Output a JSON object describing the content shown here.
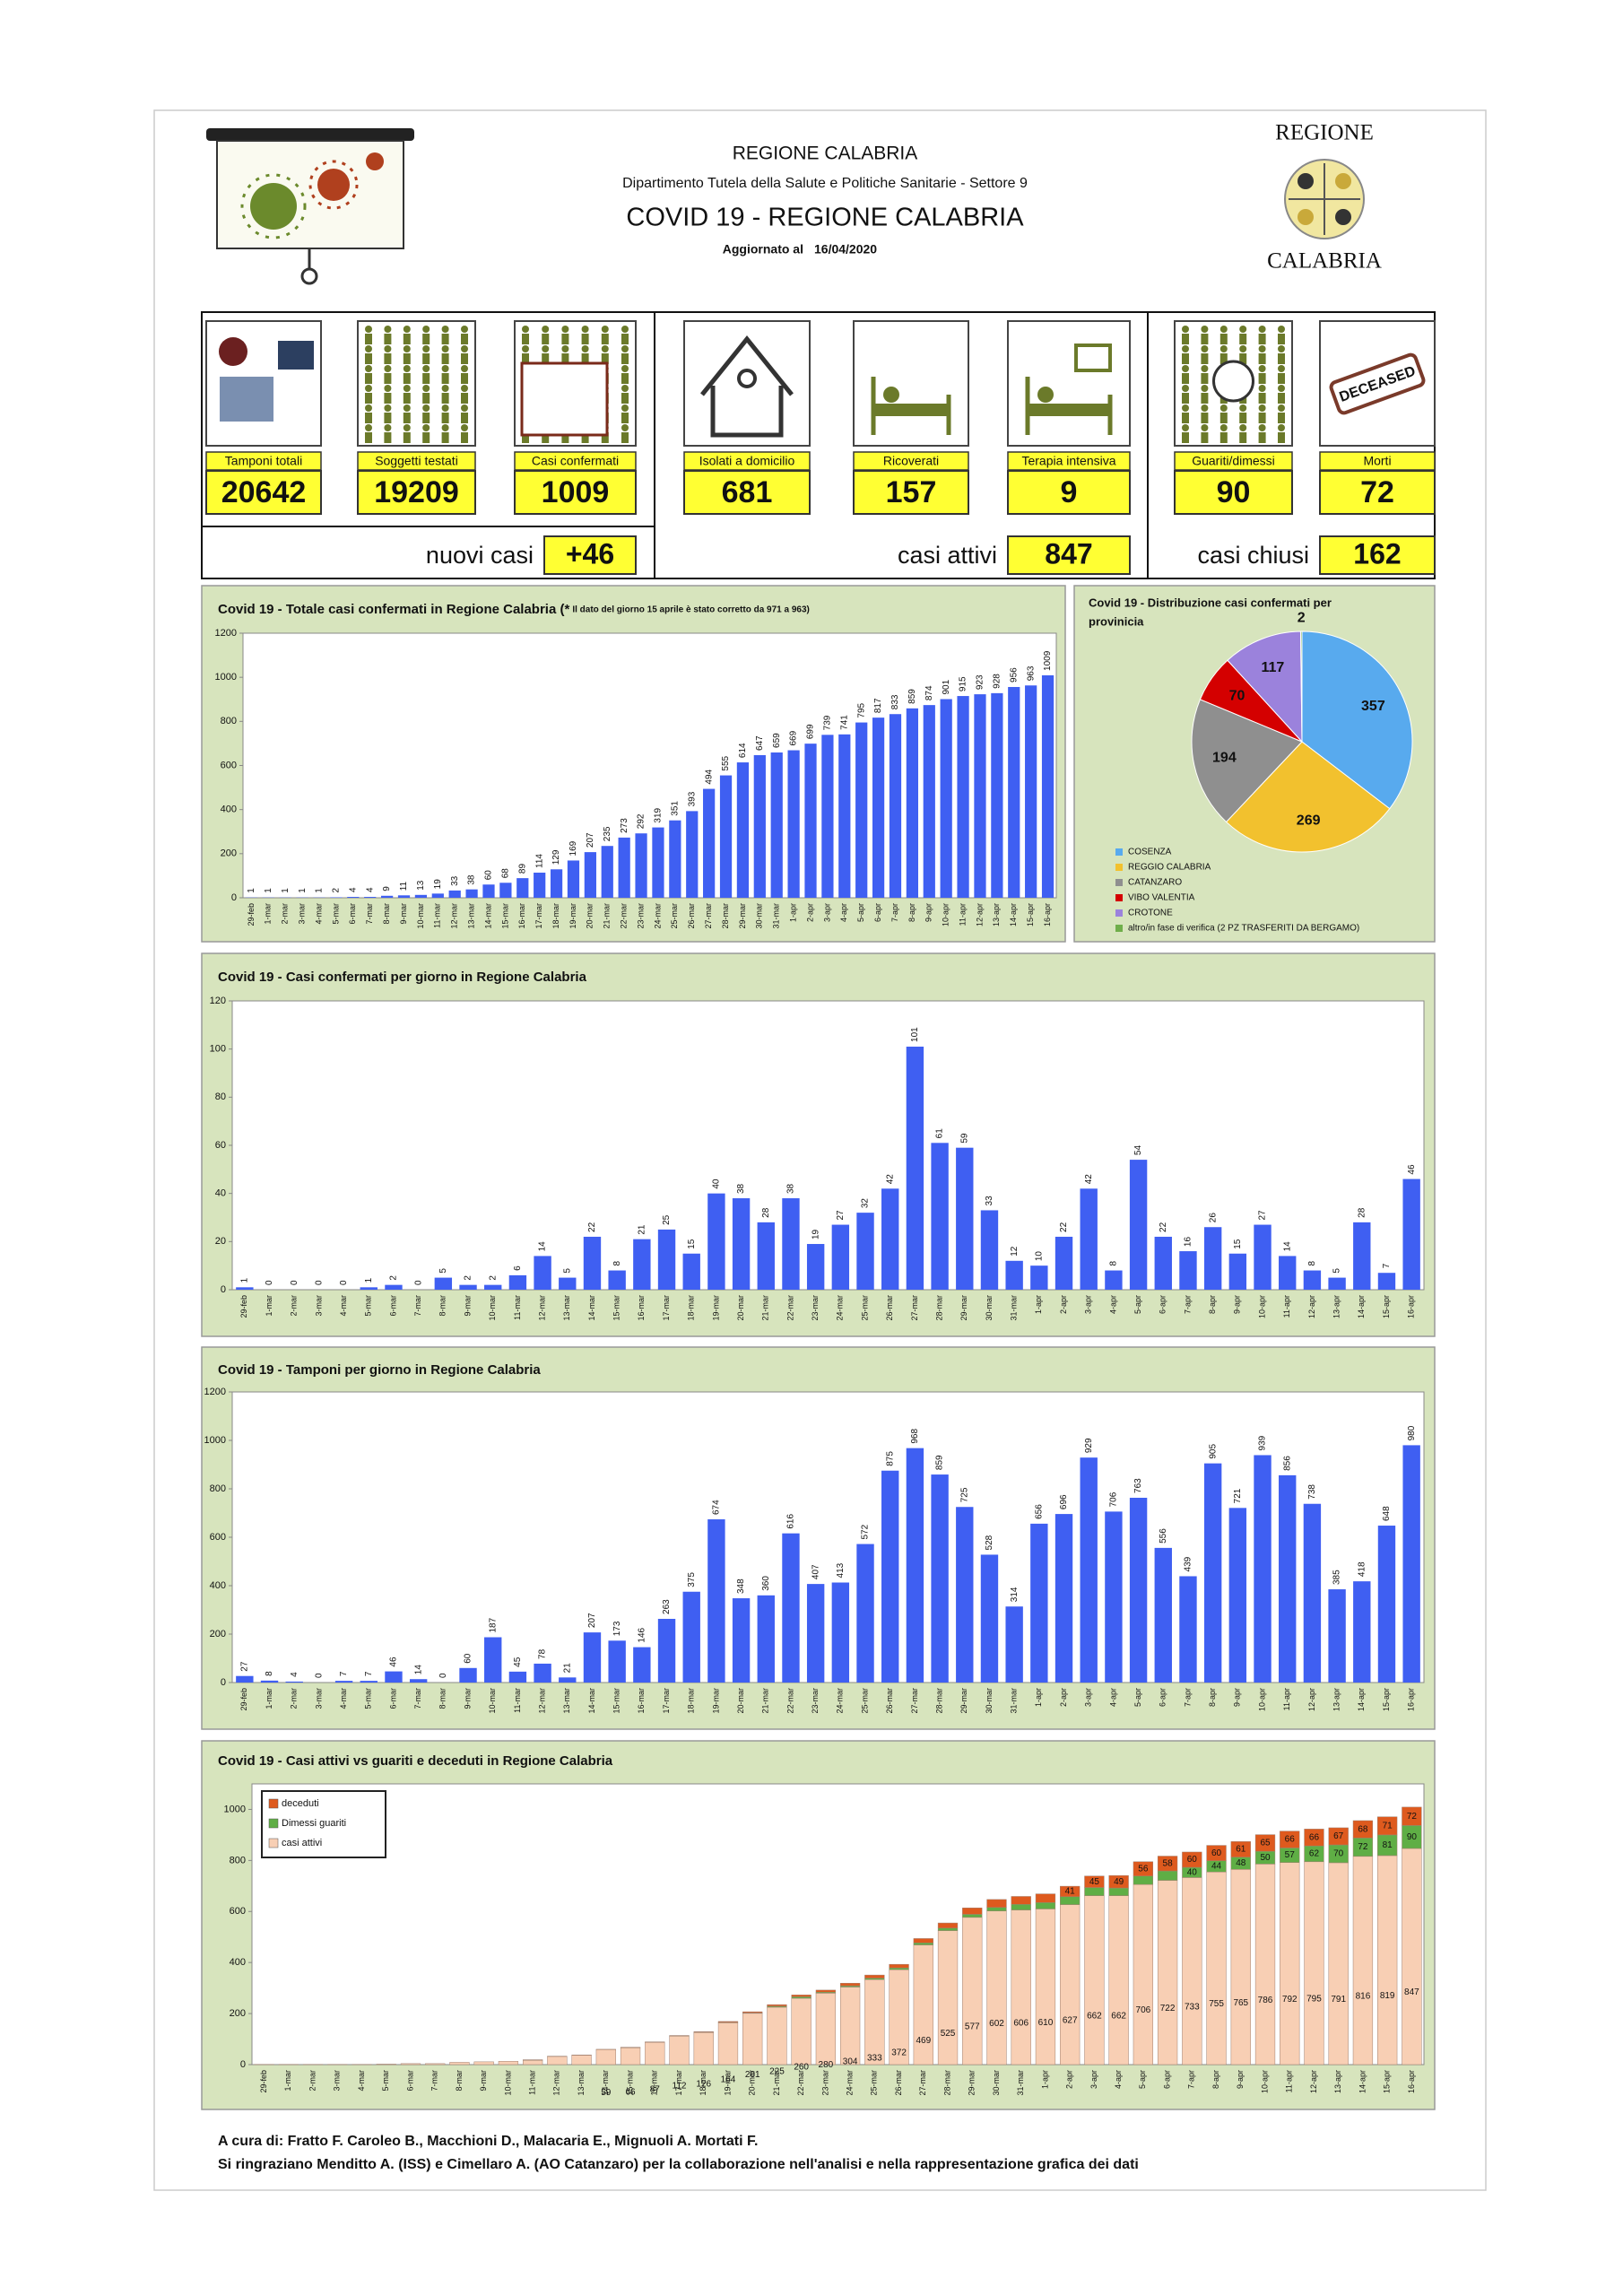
{
  "header": {
    "region": "REGIONE CALABRIA",
    "department": "Dipartimento Tutela della Salute e Politiche Sanitarie - Settore 9",
    "title": "COVID 19 - REGIONE CALABRIA",
    "updated_label": "Aggiornato al",
    "updated_date": "16/04/2020",
    "logo_top": "REGIONE",
    "logo_bottom": "CALABRIA"
  },
  "stats": {
    "items": [
      {
        "label": "Tamponi totali",
        "value": 20642
      },
      {
        "label": "Soggetti testati",
        "value": 19209
      },
      {
        "label": "Casi confermati",
        "value": 1009
      },
      {
        "label": "Isolati a domicilio",
        "value": 681
      },
      {
        "label": "Ricoverati",
        "value": 157
      },
      {
        "label": "Terapia intensiva",
        "value": 9
      },
      {
        "label": "Guariti/dimessi",
        "value": 90
      },
      {
        "label": "Morti",
        "value": 72,
        "icon_text": "DECEASED"
      }
    ],
    "summaries": [
      {
        "label": "nuovi casi",
        "value": "+46"
      },
      {
        "label": "casi attivi",
        "value": 847
      },
      {
        "label": "casi chiusi",
        "value": 162
      }
    ]
  },
  "chart_data": [
    {
      "type": "bar",
      "title": "Covid 19 - Totale casi confermati in Regione Calabria (*",
      "note": "Il dato del giorno 15 aprile è stato corretto da 971 a 963)",
      "color": "#3f5ff2",
      "categories": [
        "29-feb",
        "1-mar",
        "2-mar",
        "3-mar",
        "4-mar",
        "5-mar",
        "6-mar",
        "7-mar",
        "8-mar",
        "9-mar",
        "10-mar",
        "11-mar",
        "12-mar",
        "13-mar",
        "14-mar",
        "15-mar",
        "16-mar",
        "17-mar",
        "18-mar",
        "19-mar",
        "20-mar",
        "21-mar",
        "22-mar",
        "23-mar",
        "24-mar",
        "25-mar",
        "26-mar",
        "27-mar",
        "28-mar",
        "29-mar",
        "30-mar",
        "31-mar",
        "1-apr",
        "2-apr",
        "3-apr",
        "4-apr",
        "5-apr",
        "6-apr",
        "7-apr",
        "8-apr",
        "9-apr",
        "10-apr",
        "11-apr",
        "12-apr",
        "13-apr",
        "14-apr",
        "15-apr",
        "16-apr"
      ],
      "values": [
        1,
        1,
        1,
        1,
        1,
        2,
        4,
        4,
        9,
        11,
        13,
        19,
        33,
        38,
        60,
        68,
        89,
        114,
        129,
        169,
        207,
        235,
        273,
        292,
        319,
        351,
        393,
        494,
        555,
        614,
        647,
        659,
        669,
        699,
        739,
        741,
        795,
        817,
        833,
        859,
        874,
        901,
        915,
        923,
        928,
        956,
        963,
        1009
      ],
      "ylim": [
        0,
        1200
      ],
      "yticks": [
        0,
        200,
        400,
        600,
        800,
        1000,
        1200
      ]
    },
    {
      "type": "pie",
      "title": [
        "Covid 19 - Distribuzione casi confermati per",
        "provinicia"
      ],
      "categories": [
        "COSENZA",
        "REGGIO CALABRIA",
        "CATANZARO",
        "VIBO VALENTIA",
        "CROTONE",
        "altro/in fase di verifica (2 PZ TRASFERITI DA BERGAMO)"
      ],
      "values": [
        357,
        269,
        194,
        70,
        117,
        2
      ],
      "colors": [
        "#58aaee",
        "#f2c12e",
        "#8f8f8f",
        "#d40000",
        "#9b82dc",
        "#6fae4a"
      ]
    },
    {
      "type": "bar",
      "title": "Covid 19 - Casi confermati per giorno in Regione Calabria",
      "color": "#3f5ff2",
      "categories": [
        "29-feb",
        "1-mar",
        "2-mar",
        "3-mar",
        "4-mar",
        "5-mar",
        "6-mar",
        "7-mar",
        "8-mar",
        "9-mar",
        "10-mar",
        "11-mar",
        "12-mar",
        "13-mar",
        "14-mar",
        "15-mar",
        "16-mar",
        "17-mar",
        "18-mar",
        "19-mar",
        "20-mar",
        "21-mar",
        "22-mar",
        "23-mar",
        "24-mar",
        "25-mar",
        "26-mar",
        "27-mar",
        "28-mar",
        "29-mar",
        "30-mar",
        "31-mar",
        "1-apr",
        "2-apr",
        "3-apr",
        "4-apr",
        "5-apr",
        "6-apr",
        "7-apr",
        "8-apr",
        "9-apr",
        "10-apr",
        "11-apr",
        "12-apr",
        "13-apr",
        "14-apr",
        "15-apr",
        "16-apr"
      ],
      "values": [
        1,
        0,
        0,
        0,
        0,
        1,
        2,
        0,
        5,
        2,
        2,
        6,
        14,
        5,
        22,
        8,
        21,
        25,
        15,
        40,
        38,
        28,
        38,
        19,
        27,
        32,
        42,
        101,
        61,
        59,
        33,
        12,
        10,
        22,
        42,
        8,
        54,
        22,
        16,
        26,
        15,
        27,
        14,
        8,
        5,
        28,
        7,
        46
      ],
      "ylim": [
        0,
        120
      ],
      "yticks": [
        0,
        20,
        40,
        60,
        80,
        100,
        120
      ]
    },
    {
      "type": "bar",
      "title": "Covid 19 - Tamponi per giorno in Regione Calabria",
      "color": "#3f5ff2",
      "categories": [
        "29-feb",
        "1-mar",
        "2-mar",
        "3-mar",
        "4-mar",
        "5-mar",
        "6-mar",
        "7-mar",
        "8-mar",
        "9-mar",
        "10-mar",
        "11-mar",
        "12-mar",
        "13-mar",
        "14-mar",
        "15-mar",
        "16-mar",
        "17-mar",
        "18-mar",
        "19-mar",
        "20-mar",
        "21-mar",
        "22-mar",
        "23-mar",
        "24-mar",
        "25-mar",
        "26-mar",
        "27-mar",
        "28-mar",
        "29-mar",
        "30-mar",
        "31-mar",
        "1-apr",
        "2-apr",
        "3-apr",
        "4-apr",
        "5-apr",
        "6-apr",
        "7-apr",
        "8-apr",
        "9-apr",
        "10-apr",
        "11-apr",
        "12-apr",
        "13-apr",
        "14-apr",
        "15-apr",
        "16-apr"
      ],
      "values": [
        27,
        8,
        4,
        0,
        7,
        7,
        46,
        14,
        0,
        60,
        187,
        45,
        78,
        21,
        207,
        173,
        146,
        263,
        375,
        674,
        348,
        360,
        616,
        407,
        413,
        572,
        875,
        968,
        859,
        725,
        528,
        314,
        656,
        696,
        929,
        706,
        763,
        556,
        439,
        905,
        721,
        939,
        856,
        738,
        385,
        418,
        648,
        980
      ],
      "ylim": [
        0,
        1200
      ],
      "yticks": [
        0,
        200,
        400,
        600,
        800,
        1000,
        1200
      ]
    },
    {
      "type": "stacked_bar",
      "title": "Covid 19 - Casi attivi vs guariti e deceduti in Regione Calabria",
      "categories": [
        "29-feb",
        "1-mar",
        "2-mar",
        "3-mar",
        "4-mar",
        "5-mar",
        "6-mar",
        "7-mar",
        "8-mar",
        "9-mar",
        "10-mar",
        "11-mar",
        "12-mar",
        "13-mar",
        "14-mar",
        "15-mar",
        "16-mar",
        "17-mar",
        "18-mar",
        "19-mar",
        "20-mar",
        "21-mar",
        "22-mar",
        "23-mar",
        "24-mar",
        "25-mar",
        "26-mar",
        "27-mar",
        "28-mar",
        "29-mar",
        "30-mar",
        "31-mar",
        "1-apr",
        "2-apr",
        "3-apr",
        "4-apr",
        "5-apr",
        "6-apr",
        "7-apr",
        "8-apr",
        "9-apr",
        "10-apr",
        "11-apr",
        "12-apr",
        "13-apr",
        "14-apr",
        "15-apr",
        "16-apr"
      ],
      "series": [
        {
          "name": "casi attivi",
          "color": "#f8cfb4",
          "values": [
            1,
            1,
            1,
            1,
            1,
            2,
            4,
            4,
            9,
            11,
            13,
            17,
            32,
            37,
            59,
            66,
            87,
            112,
            126,
            164,
            201,
            225,
            260,
            280,
            304,
            333,
            372,
            469,
            525,
            577,
            602,
            606,
            610,
            627,
            662,
            662,
            706,
            722,
            733,
            755,
            765,
            786,
            792,
            795,
            791,
            816,
            819,
            847
          ]
        },
        {
          "name": "Dimessi guariti",
          "color": "#5fae45",
          "values": [
            0,
            0,
            0,
            0,
            0,
            0,
            0,
            0,
            0,
            0,
            0,
            1,
            0,
            0,
            0,
            1,
            1,
            1,
            1,
            2,
            2,
            4,
            6,
            4,
            5,
            6,
            7,
            8,
            10,
            12,
            14,
            22,
            25,
            31,
            32,
            30,
            33,
            37,
            40,
            44,
            48,
            50,
            57,
            62,
            70,
            72,
            81,
            90
          ]
        },
        {
          "name": "deceduti",
          "color": "#de5a1e",
          "values": [
            0,
            0,
            0,
            0,
            0,
            0,
            0,
            0,
            0,
            0,
            0,
            1,
            1,
            1,
            1,
            1,
            1,
            1,
            2,
            3,
            4,
            6,
            7,
            8,
            10,
            12,
            14,
            17,
            20,
            25,
            31,
            31,
            34,
            41,
            45,
            49,
            56,
            58,
            60,
            60,
            61,
            65,
            66,
            66,
            67,
            68,
            71,
            72
          ]
        }
      ],
      "ylim": [
        0,
        1100
      ],
      "yticks": [
        0,
        200,
        400,
        600,
        800,
        1000
      ]
    }
  ],
  "footer": {
    "credits": "A cura di: Fratto F. Caroleo B., Macchioni D., Malacaria E., Mignuoli A. Mortati F.",
    "thanks": "Si ringraziano Menditto A. (ISS) e Cimellaro A. (AO Catanzaro) per la collaborazione nell'analisi e nella rappresentazione grafica dei dati"
  }
}
